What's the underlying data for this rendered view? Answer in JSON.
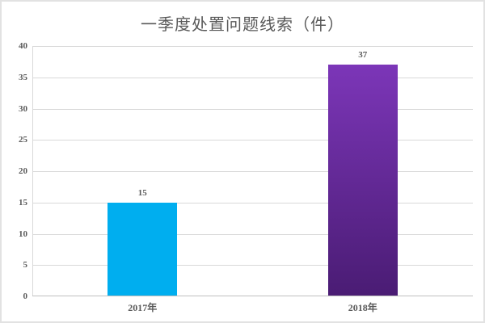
{
  "chart_data": {
    "type": "bar",
    "title": "一季度处置问题线索（件）",
    "categories": [
      "2017年",
      "2018年"
    ],
    "values": [
      15,
      37
    ],
    "data_labels": [
      "15",
      "37"
    ],
    "xlabel": "",
    "ylabel": "",
    "ylim": [
      0,
      40
    ],
    "ytick_step": 5,
    "yticks": [
      0,
      5,
      10,
      15,
      20,
      25,
      30,
      35,
      40
    ],
    "grid": true,
    "legend_position": "none",
    "bar_colors": [
      {
        "type": "solid",
        "color": "#00aeef"
      },
      {
        "type": "gradient",
        "from": "#7c36b8",
        "to": "#4a1c74"
      }
    ],
    "text_color": "#595959",
    "gridline_color": "#d9d9d9",
    "axis_line_color": "#bfbfbf"
  }
}
